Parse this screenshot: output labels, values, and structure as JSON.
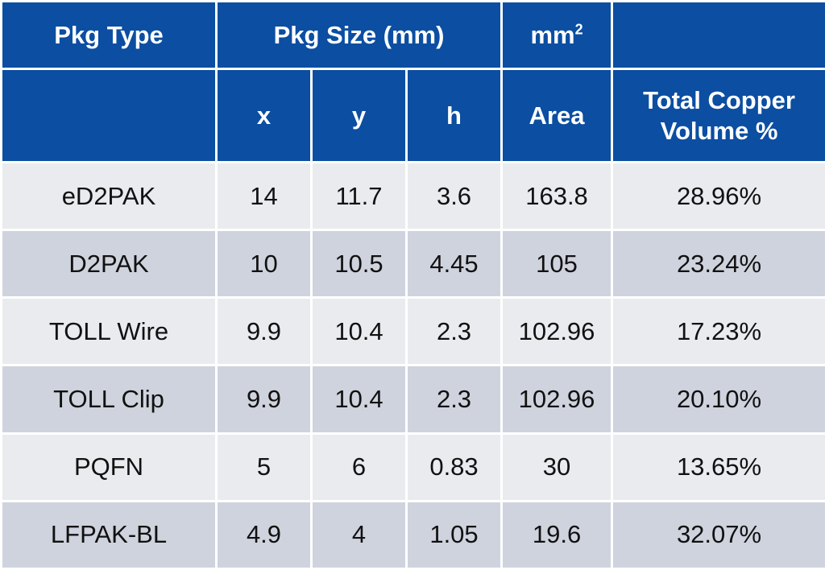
{
  "header": {
    "row1": {
      "pkg_type": "Pkg Type",
      "pkg_size": "Pkg Size (mm)",
      "unit_base": "mm",
      "unit_sup": "2",
      "blank": ""
    },
    "row2": {
      "blank": "",
      "x": "x",
      "y": "y",
      "h": "h",
      "area": "Area",
      "copper_line1": "Total Copper",
      "copper_line2": "Volume %"
    }
  },
  "rows": [
    {
      "type": "eD2PAK",
      "x": "14",
      "y": "11.7",
      "h": "3.6",
      "area": "163.8",
      "copper": "28.96%"
    },
    {
      "type": "D2PAK",
      "x": "10",
      "y": "10.5",
      "h": "4.45",
      "area": "105",
      "copper": "23.24%"
    },
    {
      "type": "TOLL Wire",
      "x": "9.9",
      "y": "10.4",
      "h": "2.3",
      "area": "102.96",
      "copper": "17.23%"
    },
    {
      "type": "TOLL Clip",
      "x": "9.9",
      "y": "10.4",
      "h": "2.3",
      "area": "102.96",
      "copper": "20.10%"
    },
    {
      "type": "PQFN",
      "x": "5",
      "y": "6",
      "h": "0.83",
      "area": "30",
      "copper": "13.65%"
    },
    {
      "type": "LFPAK-BL",
      "x": "4.9",
      "y": "4",
      "h": "1.05",
      "area": "19.6",
      "copper": "32.07%"
    }
  ],
  "colors": {
    "header_bg": "#0b4ea2",
    "row_light": "#e9ebee",
    "row_dark": "#cfd3de"
  }
}
